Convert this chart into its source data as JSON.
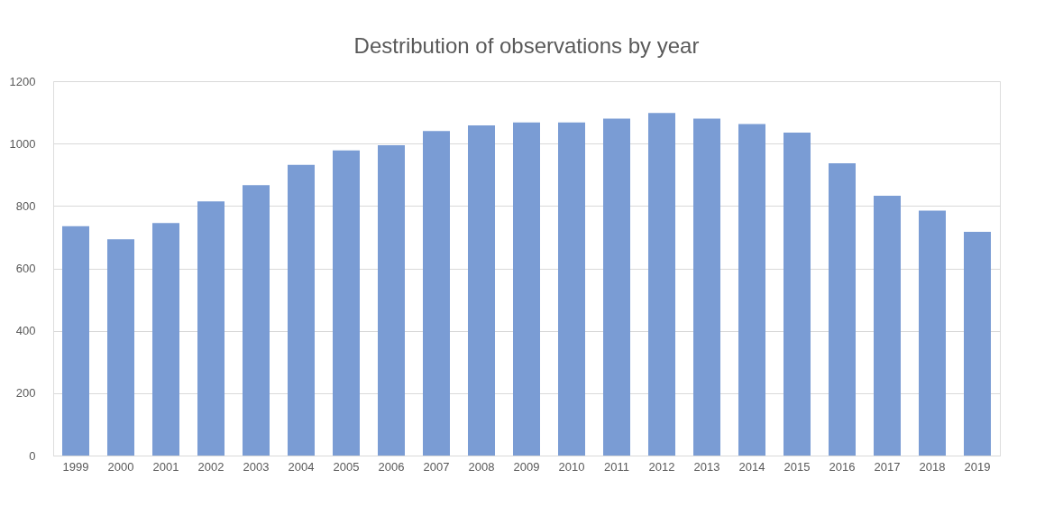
{
  "chart_data": {
    "type": "bar",
    "title": "Destribution of observations by year",
    "categories": [
      "1999",
      "2000",
      "2001",
      "2002",
      "2003",
      "2004",
      "2005",
      "2006",
      "2007",
      "2008",
      "2009",
      "2010",
      "2011",
      "2012",
      "2013",
      "2014",
      "2015",
      "2016",
      "2017",
      "2018",
      "2019"
    ],
    "values": [
      735,
      693,
      745,
      815,
      867,
      932,
      978,
      995,
      1040,
      1058,
      1068,
      1068,
      1080,
      1098,
      1080,
      1063,
      1035,
      937,
      833,
      785,
      717
    ],
    "color": "#7a9cd4",
    "ylim": [
      0,
      1200
    ],
    "yticks": [
      0,
      200,
      400,
      600,
      800,
      1000,
      1200
    ],
    "grid": "y"
  }
}
